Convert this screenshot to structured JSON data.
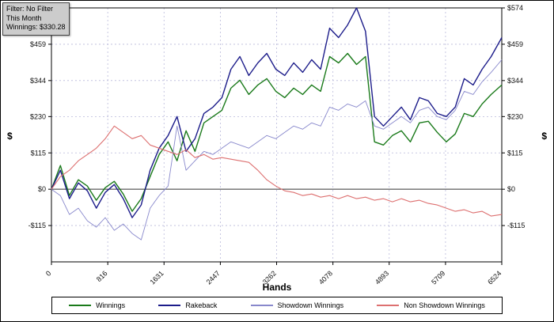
{
  "filter_box": {
    "line1": "Filter: No Filter",
    "line2": "This Month",
    "line3": "Winnings: $330.28"
  },
  "axes": {
    "x_title": "Hands",
    "y_title_left": "$",
    "y_title_right": "$"
  },
  "chart_data": {
    "type": "line",
    "title": "",
    "xlabel": "Hands",
    "ylabel": "$",
    "grid": true,
    "legend_position": "bottom",
    "xlim": [
      0,
      6524
    ],
    "ylim": [
      -230,
      574
    ],
    "x_ticks": [
      0,
      816,
      1631,
      2447,
      3262,
      4078,
      4893,
      5709,
      6524
    ],
    "y_ticks": [
      574,
      459,
      344,
      230,
      115,
      0,
      -115
    ],
    "y_tick_labels": [
      "$574",
      "$459",
      "$344",
      "$230",
      "$115",
      "$0",
      "-$115"
    ],
    "grid_color": "#b9b9da",
    "zero_line_color": "#333333",
    "x": [
      0,
      130,
      260,
      390,
      520,
      650,
      780,
      910,
      1040,
      1170,
      1300,
      1430,
      1560,
      1690,
      1820,
      1950,
      2080,
      2210,
      2340,
      2470,
      2600,
      2730,
      2860,
      2990,
      3120,
      3250,
      3380,
      3510,
      3640,
      3770,
      3900,
      4030,
      4160,
      4290,
      4420,
      4550,
      4680,
      4810,
      4940,
      5070,
      5200,
      5330,
      5460,
      5590,
      5720,
      5850,
      5980,
      6110,
      6240,
      6370,
      6524
    ],
    "series": [
      {
        "name": "Winnings",
        "color": "#1a7a1a",
        "width": 1.4,
        "values": [
          0,
          75,
          -20,
          30,
          10,
          -35,
          5,
          25,
          -15,
          -70,
          -30,
          40,
          110,
          150,
          90,
          185,
          120,
          210,
          230,
          250,
          320,
          345,
          300,
          330,
          350,
          310,
          290,
          320,
          300,
          330,
          310,
          420,
          400,
          430,
          395,
          420,
          150,
          140,
          170,
          185,
          150,
          210,
          215,
          180,
          150,
          175,
          240,
          230,
          270,
          300,
          330
        ]
      },
      {
        "name": "Rakeback",
        "color": "#1c1c8a",
        "width": 1.4,
        "values": [
          0,
          60,
          -30,
          20,
          -5,
          -60,
          -10,
          15,
          -30,
          -90,
          -50,
          60,
          130,
          170,
          230,
          120,
          160,
          240,
          260,
          290,
          380,
          420,
          360,
          400,
          430,
          380,
          360,
          400,
          370,
          410,
          380,
          510,
          480,
          520,
          574,
          500,
          230,
          200,
          230,
          260,
          220,
          290,
          280,
          240,
          230,
          260,
          350,
          330,
          380,
          420,
          480
        ]
      },
      {
        "name": "Showdown Winnings",
        "color": "#8888cc",
        "width": 0.9,
        "values": [
          0,
          -20,
          -80,
          -60,
          -100,
          -120,
          -90,
          -130,
          -110,
          -140,
          -160,
          -60,
          -20,
          10,
          200,
          60,
          90,
          120,
          110,
          130,
          150,
          140,
          130,
          150,
          170,
          160,
          180,
          200,
          190,
          210,
          200,
          260,
          250,
          270,
          260,
          280,
          200,
          190,
          210,
          230,
          210,
          250,
          260,
          230,
          220,
          250,
          310,
          300,
          340,
          370,
          410
        ]
      },
      {
        "name": "Non Showdown Winnings",
        "color": "#dd7070",
        "width": 1.1,
        "values": [
          0,
          40,
          60,
          90,
          110,
          130,
          160,
          200,
          180,
          160,
          170,
          140,
          130,
          120,
          110,
          125,
          100,
          110,
          95,
          100,
          95,
          90,
          85,
          60,
          30,
          10,
          -5,
          -10,
          -20,
          -15,
          -25,
          -20,
          -30,
          -20,
          -30,
          -25,
          -35,
          -30,
          -40,
          -30,
          -40,
          -35,
          -45,
          -50,
          -60,
          -70,
          -65,
          -75,
          -70,
          -85,
          -80
        ]
      }
    ]
  }
}
